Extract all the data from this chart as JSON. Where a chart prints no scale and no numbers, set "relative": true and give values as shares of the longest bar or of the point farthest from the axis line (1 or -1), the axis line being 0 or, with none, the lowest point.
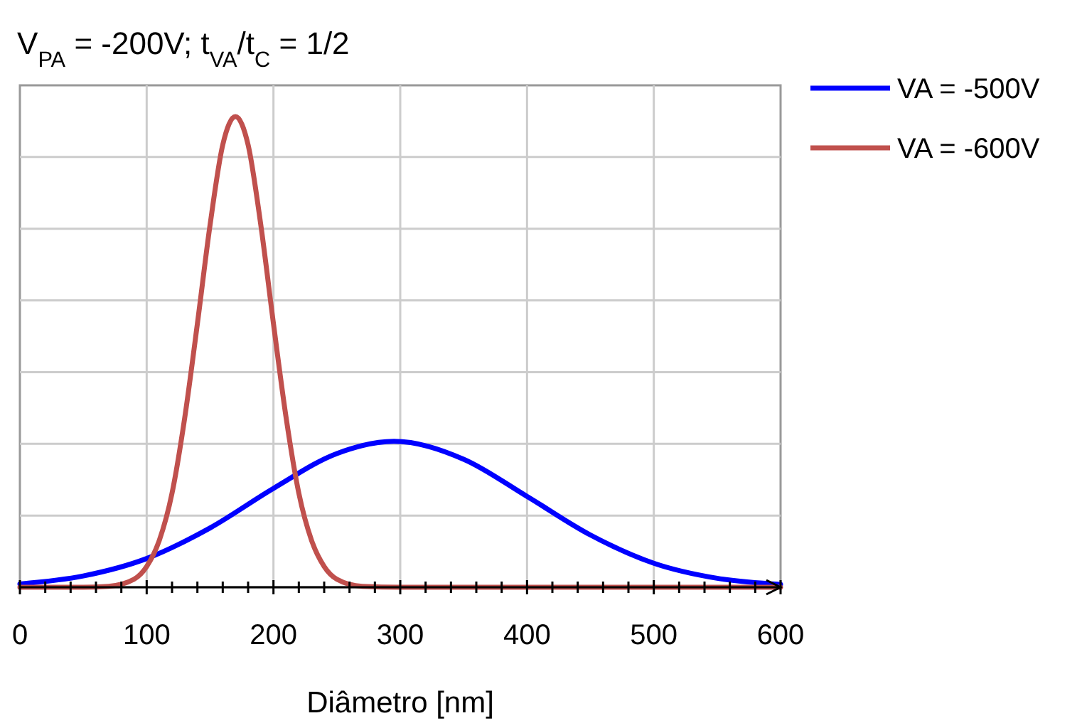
{
  "chart_data": {
    "type": "line",
    "title": "V$_{PA}$ = -200V; t$_{VA}$/t$_{C}$ = 1/2",
    "xlabel": "Diâmetro [nm]",
    "relative": true,
    "xlim": [
      0,
      600
    ],
    "xticks": [
      0,
      {
        "value": 20,
        "label": null
      },
      {
        "value": 40,
        "label": null
      },
      {
        "value": 60,
        "label": null
      },
      {
        "value": 80,
        "label": null
      },
      100,
      {
        "value": 120,
        "label": null
      },
      {
        "value": 140,
        "label": null
      },
      {
        "value": 160,
        "label": null
      },
      {
        "value": 180,
        "label": null
      },
      200,
      {
        "value": 220,
        "label": null
      },
      {
        "value": 240,
        "label": null
      },
      {
        "value": 260,
        "label": null
      },
      {
        "value": 280,
        "label": null
      },
      300,
      {
        "value": 320,
        "label": null
      },
      {
        "value": 340,
        "label": null
      },
      {
        "value": 360,
        "label": null
      },
      {
        "value": 380,
        "label": null
      },
      400,
      {
        "value": 420,
        "label": null
      },
      {
        "value": 440,
        "label": null
      },
      {
        "value": 460,
        "label": null
      },
      {
        "value": 480,
        "label": null
      },
      500,
      {
        "value": 520,
        "label": null
      },
      {
        "value": 540,
        "label": null
      },
      {
        "value": 560,
        "label": null
      },
      {
        "value": 580,
        "label": null
      },
      600
    ],
    "grid": true,
    "legend": "top right",
    "line_style": "solid",
    "series": [
      {
        "name": "VA = -500V",
        "color": "#0000ff",
        "x": [
          0,
          50,
          100,
          150,
          200,
          250,
          295,
          350,
          400,
          450,
          500,
          550,
          600
        ],
        "values": [
          0.007,
          0.024,
          0.061,
          0.126,
          0.21,
          0.284,
          0.31,
          0.272,
          0.193,
          0.111,
          0.051,
          0.019,
          0.006
        ]
      },
      {
        "name": "VA = -600V",
        "color": "#c0504d",
        "x": [
          0,
          50,
          70,
          90,
          100,
          110,
          120,
          130,
          140,
          150,
          160,
          170,
          180,
          190,
          200,
          210,
          220,
          230,
          240,
          250,
          270,
          300,
          400,
          500,
          600
        ],
        "values": [
          0,
          0,
          0.002,
          0.017,
          0.044,
          0.1,
          0.2,
          0.36,
          0.56,
          0.77,
          0.94,
          1,
          0.94,
          0.77,
          0.56,
          0.36,
          0.2,
          0.1,
          0.044,
          0.017,
          0.002,
          0,
          0,
          0,
          0
        ]
      }
    ]
  }
}
